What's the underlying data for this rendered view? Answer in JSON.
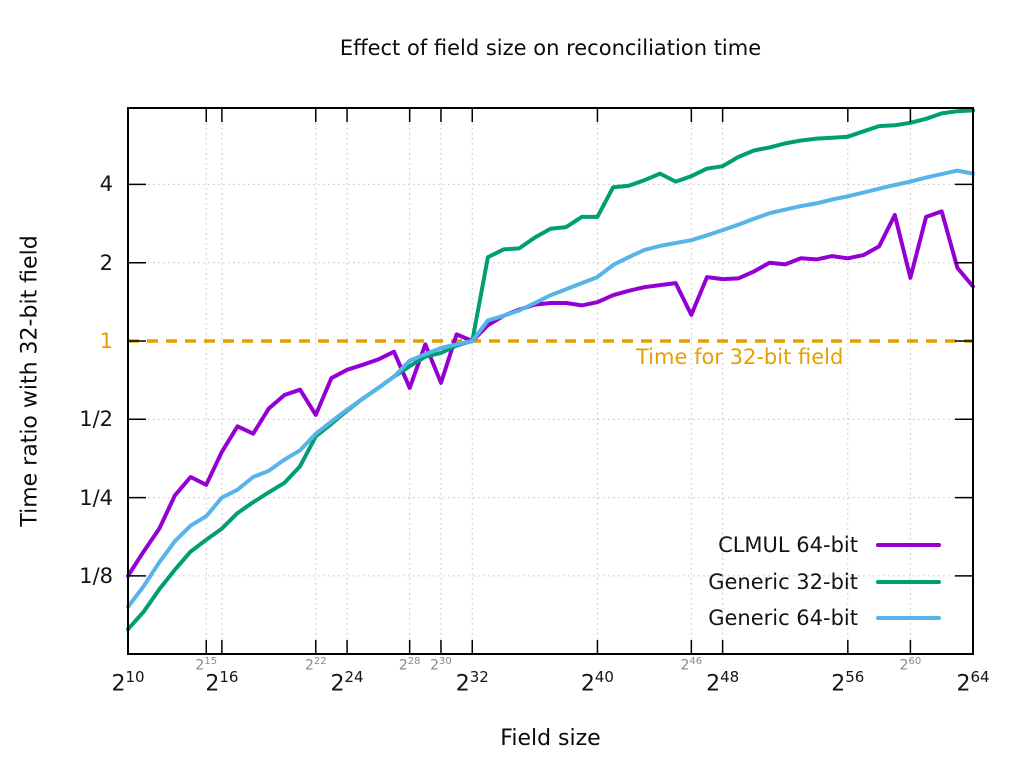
{
  "title": "Effect of field size on reconciliation time",
  "axes": {
    "x_label": "Field size",
    "y_label": "Time ratio with 32-bit field"
  },
  "annotation": {
    "text": "Time for 32-bit field",
    "color": "#E69F00"
  },
  "colors": {
    "grid": "#c6c6c6",
    "border": "#000000",
    "minor_tick_label": "#8a8a8a",
    "reference": "#E69F00"
  },
  "chart_data": {
    "type": "line",
    "title": "Effect of field size on reconciliation time",
    "xlabel": "Field size",
    "ylabel": "Time ratio with 32-bit field",
    "x_scale": "log2 (values are exponents: field size = 2^x)",
    "y_scale": "log2",
    "xlim": [
      10,
      64
    ],
    "ylim": [
      0.0625,
      8
    ],
    "grid": true,
    "legend_position": "bottom-right",
    "x": [
      10,
      11,
      12,
      13,
      14,
      15,
      16,
      17,
      18,
      19,
      20,
      21,
      22,
      23,
      24,
      25,
      26,
      27,
      28,
      29,
      30,
      31,
      32,
      33,
      34,
      35,
      36,
      37,
      38,
      39,
      40,
      41,
      42,
      43,
      44,
      45,
      46,
      47,
      48,
      49,
      50,
      51,
      52,
      53,
      54,
      55,
      56,
      57,
      58,
      59,
      60,
      61,
      62,
      63,
      64
    ],
    "x_ticks": [
      {
        "exp": 10,
        "style": "major"
      },
      {
        "exp": 15,
        "style": "minor"
      },
      {
        "exp": 16,
        "style": "major"
      },
      {
        "exp": 22,
        "style": "minor"
      },
      {
        "exp": 24,
        "style": "major"
      },
      {
        "exp": 28,
        "style": "minor"
      },
      {
        "exp": 30,
        "style": "minor"
      },
      {
        "exp": 32,
        "style": "major"
      },
      {
        "exp": 40,
        "style": "major"
      },
      {
        "exp": 46,
        "style": "minor"
      },
      {
        "exp": 48,
        "style": "major"
      },
      {
        "exp": 56,
        "style": "major"
      },
      {
        "exp": 60,
        "style": "minor"
      },
      {
        "exp": 64,
        "style": "major"
      }
    ],
    "y_ticks": [
      {
        "value": 4,
        "label": "4"
      },
      {
        "value": 2,
        "label": "2"
      },
      {
        "value": 1,
        "label": "1",
        "color": "#E69F00"
      },
      {
        "value": 0.5,
        "label": "1/2"
      },
      {
        "value": 0.25,
        "label": "1/4"
      },
      {
        "value": 0.125,
        "label": "1/8"
      }
    ],
    "reference_line": {
      "y": 1,
      "label": "Time for 32-bit field",
      "color": "#E69F00",
      "style": "dashed"
    },
    "series": [
      {
        "name": "CLMUL 64-bit",
        "color": "#9400D3",
        "values": [
          0.125,
          0.155,
          0.19,
          0.255,
          0.3,
          0.28,
          0.375,
          0.47,
          0.44,
          0.55,
          0.62,
          0.65,
          0.52,
          0.72,
          0.775,
          0.81,
          0.85,
          0.91,
          0.66,
          0.97,
          0.69,
          1.06,
          1.0,
          1.15,
          1.25,
          1.32,
          1.38,
          1.4,
          1.4,
          1.37,
          1.41,
          1.5,
          1.56,
          1.61,
          1.64,
          1.67,
          1.26,
          1.76,
          1.73,
          1.74,
          1.85,
          2.0,
          1.97,
          2.08,
          2.06,
          2.12,
          2.08,
          2.14,
          2.31,
          3.05,
          1.75,
          3.0,
          3.15,
          1.91,
          1.62
        ]
      },
      {
        "name": "Generic 32-bit",
        "color": "#009E73",
        "values": [
          0.078,
          0.091,
          0.111,
          0.132,
          0.155,
          0.172,
          0.19,
          0.218,
          0.24,
          0.262,
          0.285,
          0.33,
          0.43,
          0.48,
          0.54,
          0.6,
          0.66,
          0.73,
          0.8,
          0.87,
          0.9,
          0.96,
          1.0,
          2.1,
          2.25,
          2.27,
          2.5,
          2.7,
          2.74,
          3.0,
          3.0,
          3.9,
          3.95,
          4.15,
          4.4,
          4.1,
          4.3,
          4.6,
          4.7,
          5.1,
          5.4,
          5.55,
          5.75,
          5.9,
          6.0,
          6.05,
          6.1,
          6.4,
          6.7,
          6.75,
          6.9,
          7.15,
          7.5,
          7.65,
          7.7
        ]
      },
      {
        "name": "Generic 64-bit",
        "color": "#56B4E9",
        "values": [
          0.095,
          0.114,
          0.141,
          0.17,
          0.195,
          0.212,
          0.25,
          0.268,
          0.3,
          0.317,
          0.35,
          0.38,
          0.44,
          0.49,
          0.545,
          0.6,
          0.66,
          0.73,
          0.84,
          0.89,
          0.94,
          0.97,
          1.0,
          1.2,
          1.25,
          1.31,
          1.4,
          1.5,
          1.58,
          1.67,
          1.76,
          1.96,
          2.1,
          2.24,
          2.32,
          2.38,
          2.44,
          2.55,
          2.67,
          2.8,
          2.95,
          3.1,
          3.2,
          3.3,
          3.38,
          3.5,
          3.6,
          3.72,
          3.85,
          3.98,
          4.1,
          4.25,
          4.38,
          4.52,
          4.4
        ]
      }
    ]
  }
}
